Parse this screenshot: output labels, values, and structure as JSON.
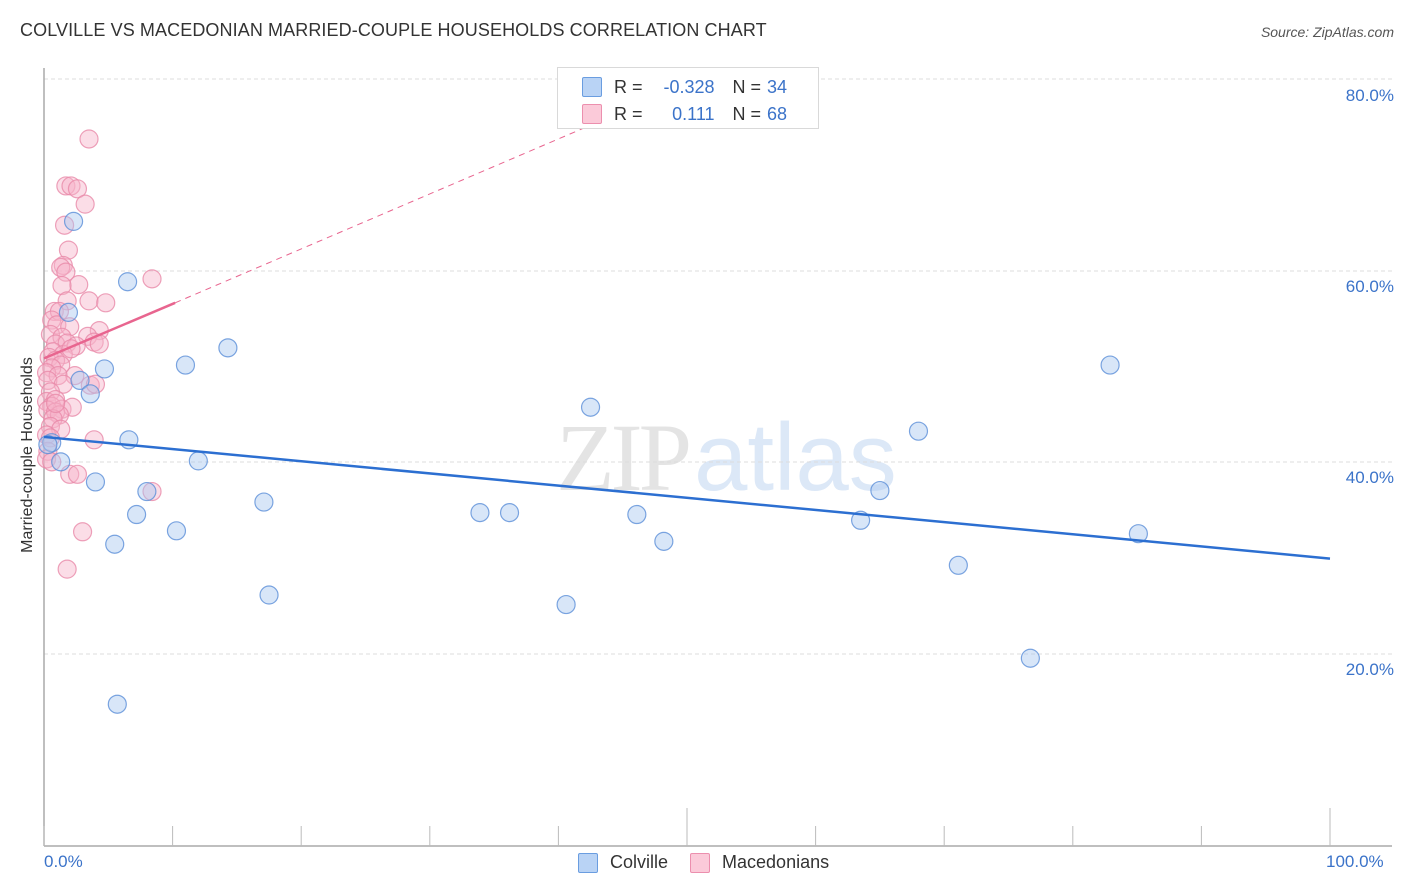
{
  "header": {
    "title": "COLVILLE VS MACEDONIAN MARRIED-COUPLE HOUSEHOLDS CORRELATION CHART",
    "source": "Source: ZipAtlas.com"
  },
  "watermark": {
    "zip": "ZIP",
    "atlas": "atlas"
  },
  "legend": {
    "rows": [
      {
        "series": "Colville",
        "r_label": "R =",
        "r_value": "-0.328",
        "n_label": "N =",
        "n_value": "34",
        "color": "#a9c8f0",
        "border": "#6a9de0"
      },
      {
        "series": "Macedonians",
        "r_label": "R =",
        "r_value": "0.111",
        "n_label": "N =",
        "n_value": "68",
        "color": "#f9c4d5",
        "border": "#ec8fae"
      }
    ]
  },
  "bottom_legend": [
    {
      "label": "Colville",
      "color": "#b9d3f5",
      "border": "#6a9de0"
    },
    {
      "label": "Macedonians",
      "color": "#fbcad9",
      "border": "#ec8fae"
    }
  ],
  "axes": {
    "ylabel": "Married-couple Households",
    "y_ticks": [
      "80.0%",
      "60.0%",
      "40.0%",
      "20.0%"
    ],
    "x_ticks": [
      "0.0%",
      "100.0%"
    ]
  },
  "colors": {
    "blue_fill": "#a9c8f0",
    "blue_stroke": "#5b8fd8",
    "blue_line": "#2c6fd1",
    "pink_fill": "#f7b3c9",
    "pink_stroke": "#e98aa9",
    "pink_line": "#e8658f",
    "tick_text": "#3b73c9",
    "grid": "#dddddd"
  },
  "chart_data": {
    "type": "scatter",
    "title": "COLVILLE VS MACEDONIAN MARRIED-COUPLE HOUSEHOLDS CORRELATION CHART",
    "xlabel": "",
    "ylabel": "Married-couple Households",
    "xlim": [
      0,
      100
    ],
    "ylim": [
      0,
      80
    ],
    "x_tick_labels": [
      "0.0%",
      "100.0%"
    ],
    "y_tick_labels": [
      "20.0%",
      "40.0%",
      "60.0%",
      "80.0%"
    ],
    "grid": true,
    "legend_position": "top-center",
    "series": [
      {
        "name": "Colville",
        "R": -0.328,
        "N": 34,
        "trend": {
          "x": [
            0,
            100
          ],
          "y": [
            42.7,
            30.0
          ]
        },
        "points": [
          [
            2.3,
            65.2
          ],
          [
            6.5,
            58.9
          ],
          [
            1.9,
            55.7
          ],
          [
            11.0,
            50.2
          ],
          [
            14.3,
            52.0
          ],
          [
            4.7,
            49.8
          ],
          [
            2.8,
            48.6
          ],
          [
            3.6,
            47.2
          ],
          [
            6.6,
            42.4
          ],
          [
            0.6,
            42.1
          ],
          [
            1.3,
            40.1
          ],
          [
            12.0,
            40.2
          ],
          [
            4.0,
            38.0
          ],
          [
            8.0,
            37.0
          ],
          [
            17.1,
            35.9
          ],
          [
            7.2,
            34.6
          ],
          [
            10.3,
            32.9
          ],
          [
            5.5,
            31.5
          ],
          [
            33.9,
            34.8
          ],
          [
            36.2,
            34.8
          ],
          [
            42.5,
            45.8
          ],
          [
            46.1,
            34.6
          ],
          [
            48.2,
            31.8
          ],
          [
            63.5,
            34.0
          ],
          [
            65.0,
            37.1
          ],
          [
            68.0,
            43.3
          ],
          [
            82.9,
            50.2
          ],
          [
            85.1,
            32.6
          ],
          [
            71.1,
            29.3
          ],
          [
            40.6,
            25.2
          ],
          [
            17.5,
            26.2
          ],
          [
            76.7,
            19.6
          ],
          [
            5.7,
            14.8
          ],
          [
            0.3,
            41.9
          ]
        ]
      },
      {
        "name": "Macedonians",
        "R": 0.111,
        "N": 68,
        "trend": {
          "x": [
            0,
            10.2
          ],
          "y": [
            50.9,
            56.7
          ],
          "dashed_extension_to": [
            43.3,
            75.7
          ]
        },
        "points": [
          [
            3.5,
            73.8
          ],
          [
            1.7,
            68.9
          ],
          [
            2.1,
            68.9
          ],
          [
            2.6,
            68.6
          ],
          [
            3.2,
            67.0
          ],
          [
            1.6,
            64.8
          ],
          [
            1.9,
            62.2
          ],
          [
            1.5,
            60.6
          ],
          [
            1.3,
            60.4
          ],
          [
            1.7,
            59.9
          ],
          [
            2.7,
            58.6
          ],
          [
            8.4,
            59.2
          ],
          [
            1.4,
            58.5
          ],
          [
            3.5,
            56.9
          ],
          [
            4.8,
            56.7
          ],
          [
            1.8,
            56.9
          ],
          [
            0.8,
            55.8
          ],
          [
            1.2,
            55.8
          ],
          [
            0.6,
            54.9
          ],
          [
            1.0,
            54.4
          ],
          [
            2.0,
            54.2
          ],
          [
            4.3,
            53.8
          ],
          [
            0.5,
            53.4
          ],
          [
            1.4,
            53.1
          ],
          [
            3.4,
            53.2
          ],
          [
            0.9,
            52.4
          ],
          [
            1.8,
            52.5
          ],
          [
            3.9,
            52.6
          ],
          [
            4.3,
            52.4
          ],
          [
            2.5,
            52.2
          ],
          [
            0.7,
            51.6
          ],
          [
            1.5,
            51.3
          ],
          [
            2.1,
            51.9
          ],
          [
            0.4,
            51.0
          ],
          [
            0.9,
            50.7
          ],
          [
            1.3,
            50.2
          ],
          [
            0.6,
            49.9
          ],
          [
            0.2,
            49.4
          ],
          [
            1.1,
            49.1
          ],
          [
            2.4,
            49.1
          ],
          [
            0.3,
            48.6
          ],
          [
            1.5,
            48.2
          ],
          [
            3.6,
            48.1
          ],
          [
            4.0,
            48.2
          ],
          [
            0.5,
            47.4
          ],
          [
            0.2,
            46.4
          ],
          [
            0.9,
            46.6
          ],
          [
            0.6,
            45.9
          ],
          [
            1.4,
            45.6
          ],
          [
            2.2,
            45.8
          ],
          [
            0.3,
            45.5
          ],
          [
            0.9,
            45.3
          ],
          [
            1.2,
            45.0
          ],
          [
            0.7,
            44.6
          ],
          [
            0.5,
            43.8
          ],
          [
            1.3,
            43.5
          ],
          [
            0.2,
            42.9
          ],
          [
            0.5,
            42.6
          ],
          [
            3.9,
            42.4
          ],
          [
            0.3,
            41.2
          ],
          [
            0.2,
            40.4
          ],
          [
            0.6,
            40.1
          ],
          [
            2.0,
            38.8
          ],
          [
            2.6,
            38.8
          ],
          [
            8.4,
            37.0
          ],
          [
            3.0,
            32.8
          ],
          [
            1.8,
            28.9
          ],
          [
            0.9,
            46.2
          ]
        ]
      }
    ]
  }
}
